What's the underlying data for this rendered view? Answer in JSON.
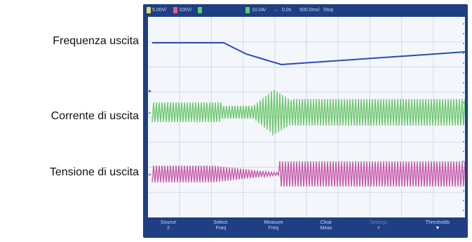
{
  "labels": {
    "freq": "Frequenza uscita",
    "current": "Corrente di uscita",
    "voltage": "Tensione di uscita"
  },
  "status_bar": {
    "ch1": "5.00V/",
    "ch2": "100V/",
    "ch4": "10.0A/",
    "trigger": "0.0s",
    "timebase": "500.0ms/",
    "mode": "Stop"
  },
  "softkeys": [
    {
      "line1": "Source",
      "line2": "2"
    },
    {
      "line1": "Select:",
      "line2": "Freq"
    },
    {
      "line1": "Measure",
      "line2": "Freq"
    },
    {
      "line1": "Clear",
      "line2": "Meas"
    },
    {
      "line1": "Settings",
      "line2": ""
    },
    {
      "line1": "Thresholds",
      "line2": ""
    }
  ],
  "colors": {
    "frame": "#1e3f84",
    "freq_trace": "#2a4bb5",
    "current_trace": "#6cc86c",
    "voltage_trace": "#c75aa8",
    "ch1_marker": "#e8e24a",
    "ch2_marker": "#e85a8f",
    "ch4_marker": "#5bd45b"
  }
}
